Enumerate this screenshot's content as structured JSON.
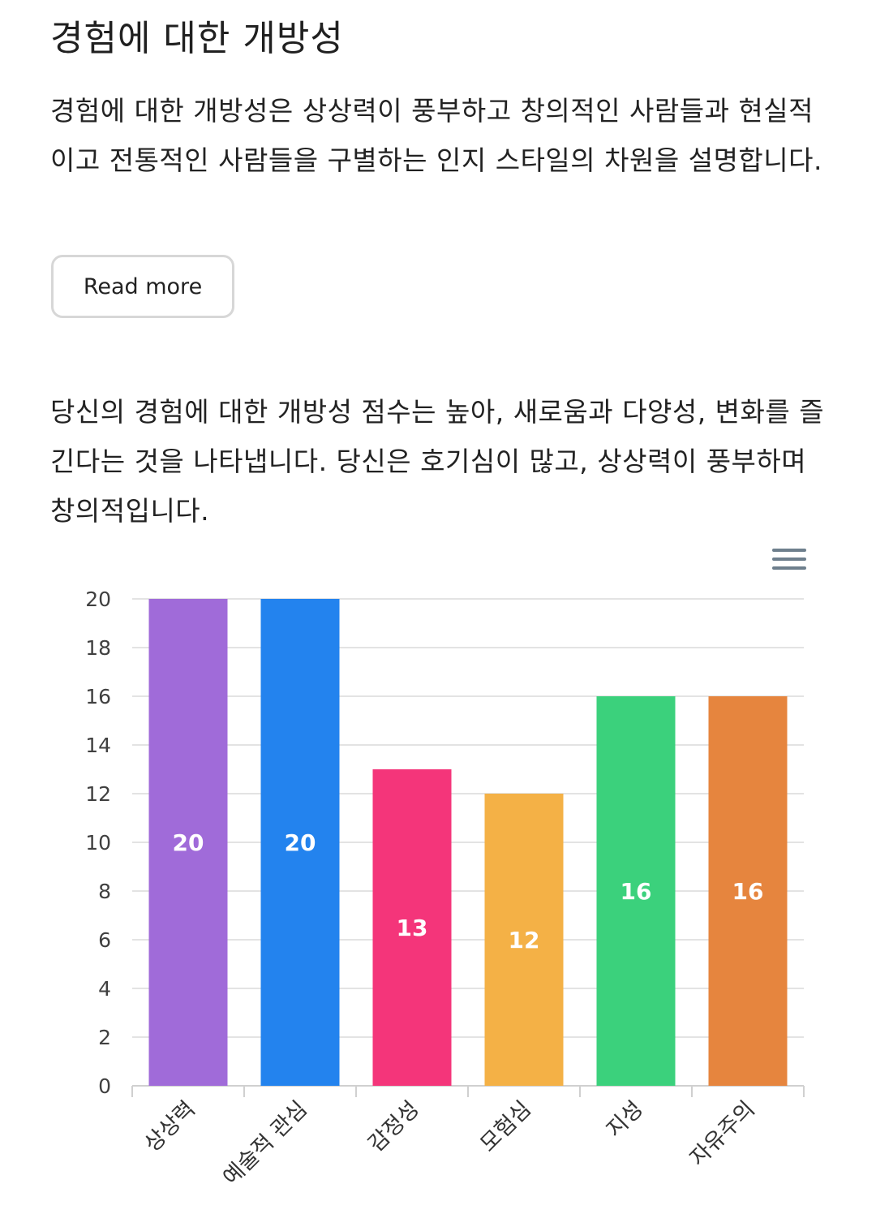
{
  "section": {
    "title": "경험에 대한 개방성",
    "description": "경험에 대한 개방성은 상상력이 풍부하고 창의적인 사람들과 현실적이고 전통적인 사람들을 구별하는 인지 스타일의 차원을 설명합니다.",
    "read_more_label": "Read more",
    "result_text": "당신의 경험에 대한 개방성 점수는 높아, 새로움과 다양성, 변화를 즐긴다는 것을 나타냅니다. 당신은 호기심이 많고, 상상력이 풍부하며 창의적입니다."
  },
  "chart_menu_icon": "hamburger-menu-icon",
  "chart_data": {
    "type": "bar",
    "categories": [
      "상상력",
      "예술적 관심",
      "감정성",
      "모험심",
      "지성",
      "자유주의"
    ],
    "values": [
      20,
      20,
      13,
      12,
      16,
      16
    ],
    "colors": [
      "#a06bd9",
      "#2383ee",
      "#f4357a",
      "#f4b146",
      "#3bd17c",
      "#e6853e"
    ],
    "title": "",
    "xlabel": "",
    "ylabel": "",
    "ylim": [
      0,
      20
    ],
    "yticks": [
      0,
      2,
      4,
      6,
      8,
      10,
      12,
      14,
      16,
      18,
      20
    ],
    "grid": true,
    "data_labels": true
  }
}
